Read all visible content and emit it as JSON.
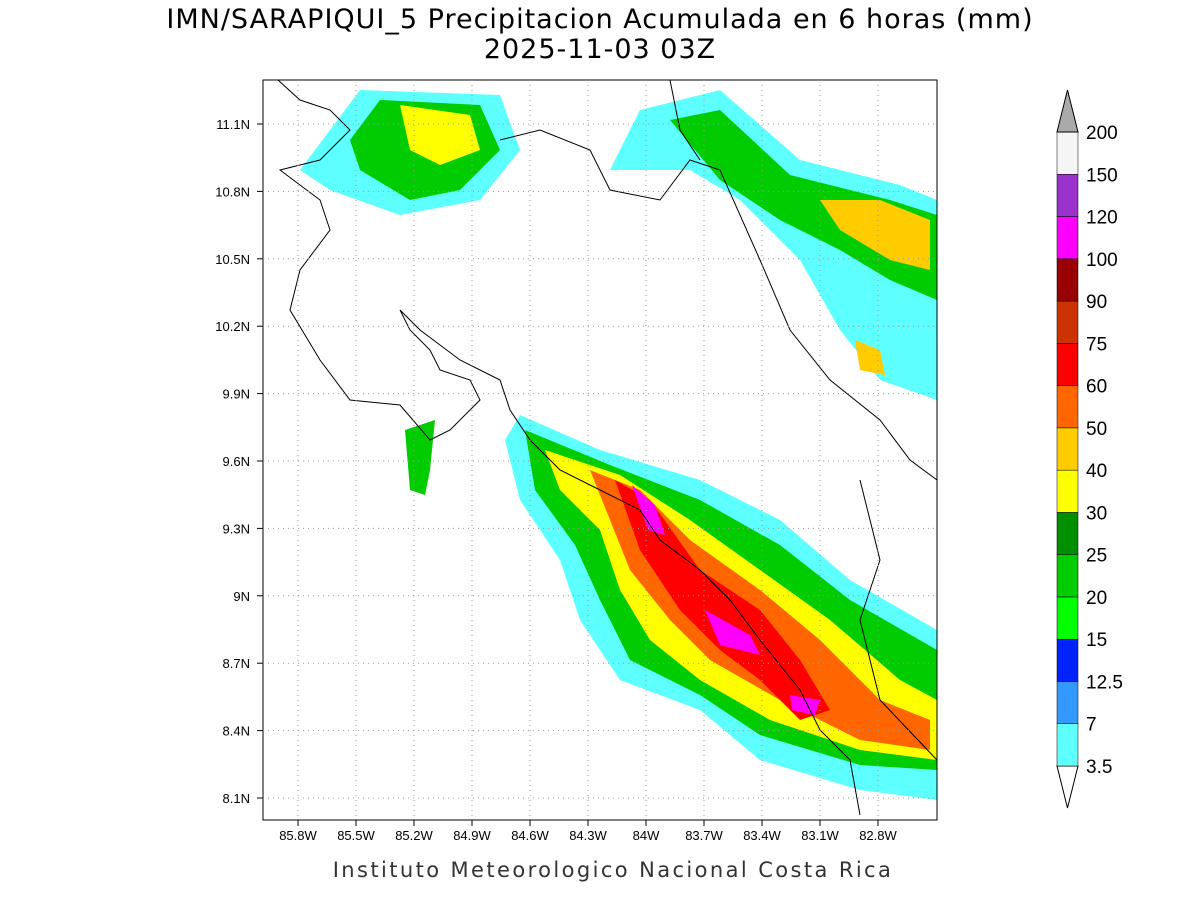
{
  "header": {
    "title": "IMN/SARAPIQUI_5 Precipitacion Acumulada en 6 horas (mm)",
    "subtitle": "2025-11-03 03Z"
  },
  "map": {
    "lon_labels": [
      "85.8W",
      "85.5W",
      "85.2W",
      "84.9W",
      "84.6W",
      "84.3W",
      "84W",
      "83.7W",
      "83.4W",
      "83.1W",
      "82.8W"
    ],
    "lat_labels": [
      "11.1N",
      "10.8N",
      "10.5N",
      "10.2N",
      "9.9N",
      "9.6N",
      "9.3N",
      "9N",
      "8.7N",
      "8.4N",
      "8.1N"
    ]
  },
  "colorbar": {
    "levels": [
      "3.5",
      "7",
      "12.5",
      "15",
      "20",
      "25",
      "30",
      "40",
      "50",
      "60",
      "75",
      "90",
      "100",
      "120",
      "150",
      "200"
    ],
    "colors": [
      "#ffffff",
      "#5effff",
      "#3399ff",
      "#0022ff",
      "#00ff00",
      "#00cc00",
      "#008f00",
      "#ffff00",
      "#ffcc00",
      "#ff6600",
      "#ff0000",
      "#cc3300",
      "#990000",
      "#ff00ff",
      "#9933cc",
      "#f5f5f5",
      "#aaaaaa"
    ]
  },
  "footer": {
    "credit": "Instituto Meteorologico Nacional Costa Rica"
  }
}
